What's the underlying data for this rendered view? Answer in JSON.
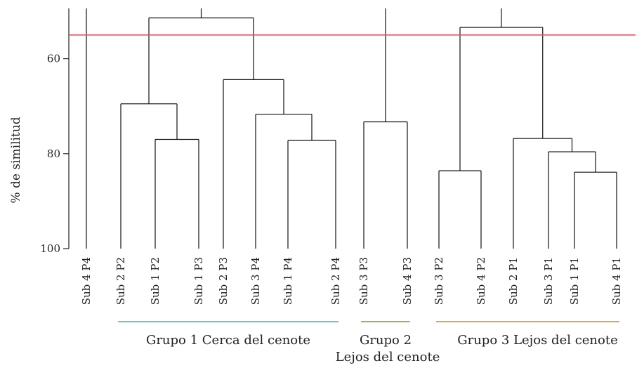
{
  "chart_data": {
    "type": "dendrogram",
    "ylabel": "% de similitud",
    "y_ticks": [
      60,
      80,
      100
    ],
    "ylim": [
      50,
      100
    ],
    "cutoff_similarity": 55,
    "leaves": [
      "Sub 4 P4",
      "Sub 2 P2",
      "Sub 1 P2",
      "Sub 1 P3",
      "Sub 2 P3",
      "Sub 3 P4",
      "Sub 1 P4",
      "Sub 2 P4",
      "Sub 3 P3",
      "Sub 4 P3",
      "Sub 3 P2",
      "Sub 4 P2",
      "Sub 2 P1",
      "Sub 3 P1",
      "Sub 1 P1",
      "Sub 4 P1"
    ],
    "merges": [
      {
        "id": "a",
        "left": "Sub 1 P2",
        "right": "Sub 1 P3",
        "similarity": 77.0
      },
      {
        "id": "b",
        "left": "Sub 2 P2",
        "right": "a",
        "similarity": 69.5
      },
      {
        "id": "c",
        "left": "Sub 1 P4",
        "right": "Sub 2 P4",
        "similarity": 77.2
      },
      {
        "id": "d",
        "left": "Sub 3 P4",
        "right": "c",
        "similarity": 71.7
      },
      {
        "id": "e",
        "left": "Sub 2 P3",
        "right": "d",
        "similarity": 64.4
      },
      {
        "id": "g1",
        "left": "b",
        "right": "e",
        "similarity": 51.4
      },
      {
        "id": "g2",
        "left": "Sub 3 P3",
        "right": "Sub 4 P3",
        "similarity": 73.3
      },
      {
        "id": "h",
        "left": "Sub 3 P2",
        "right": "Sub 4 P2",
        "similarity": 83.6
      },
      {
        "id": "i",
        "left": "Sub 1 P1",
        "right": "Sub 4 P1",
        "similarity": 83.9
      },
      {
        "id": "j",
        "left": "Sub 3 P1",
        "right": "i",
        "similarity": 79.6
      },
      {
        "id": "k",
        "left": "Sub 2 P1",
        "right": "j",
        "similarity": 76.8
      },
      {
        "id": "g3",
        "left": "h",
        "right": "k",
        "similarity": 53.4
      }
    ],
    "top_lines": [
      "Sub 4 P4",
      "g1",
      "g2",
      "g3"
    ],
    "groups": [
      {
        "label": "Grupo 1 Cerca del cenote",
        "from": "Sub 2 P2",
        "to": "Sub 2 P4",
        "color": "#5bc8d6"
      },
      {
        "label": "Grupo 2",
        "from": "Sub 3 P3",
        "to": "Sub 4 P3",
        "color": "#8cc04b"
      },
      {
        "label": "Grupo 3 Lejos del cenote",
        "from": "Sub 3 P2",
        "to": "Sub 4 P1",
        "color": "#f0a23c"
      }
    ],
    "sublabel": "Lejos del cenote",
    "colors": {
      "tree": "#111111",
      "cutoff": "#e8505b",
      "axis": "#222222"
    }
  }
}
